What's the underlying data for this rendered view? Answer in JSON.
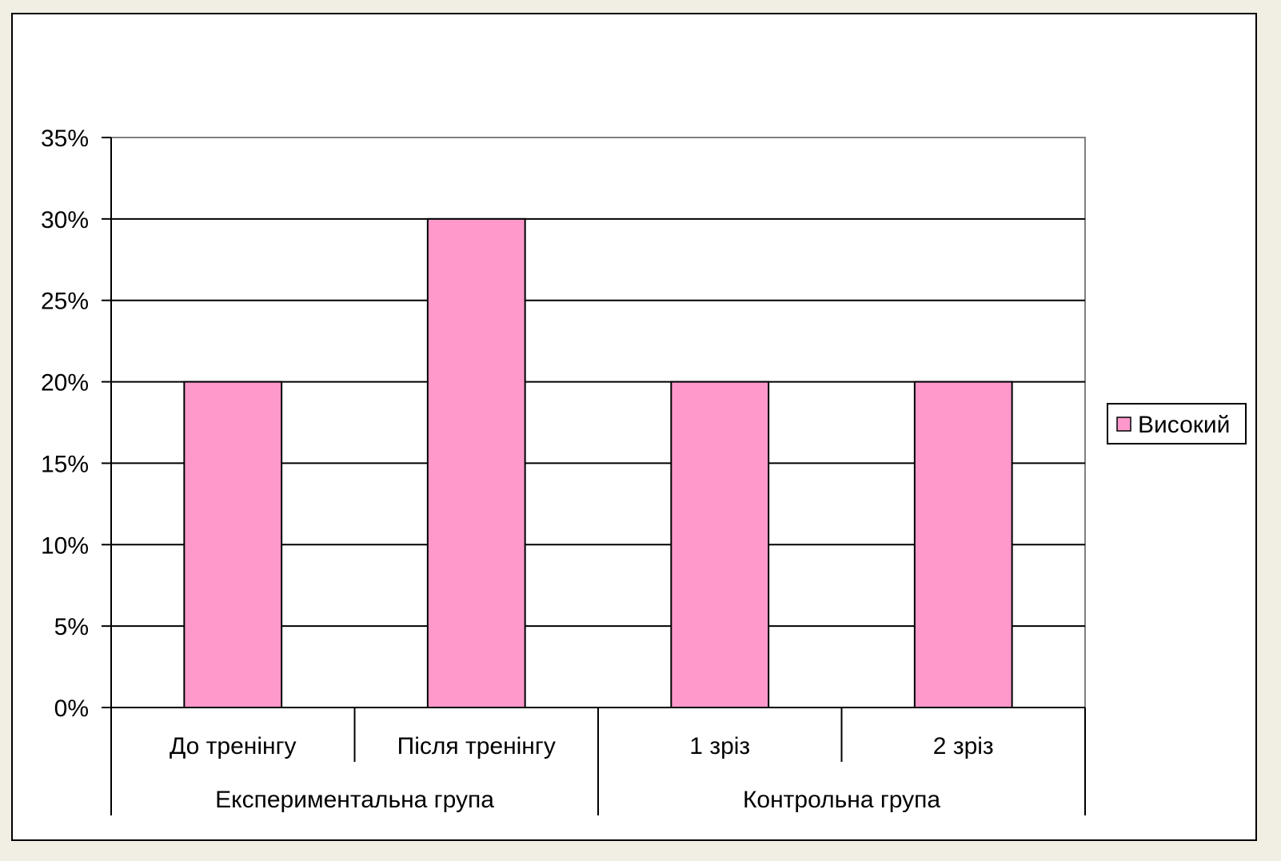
{
  "chart_data": {
    "type": "bar",
    "title": "",
    "xlabel": "",
    "ylabel": "",
    "categories": [
      "До тренінгу",
      "Після тренінгу",
      "1 зріз",
      "2 зріз"
    ],
    "groups": [
      {
        "label": "Експериментальна група",
        "categories": [
          "До тренінгу",
          "Після тренінгу"
        ]
      },
      {
        "label": "Контрольна група",
        "categories": [
          "1 зріз",
          "2 зріз"
        ]
      }
    ],
    "series": [
      {
        "name": "Високий",
        "values": [
          20,
          30,
          20,
          20
        ],
        "color": "#ff99cc"
      }
    ],
    "ylim": [
      0,
      35
    ],
    "yticks": [
      0,
      5,
      10,
      15,
      20,
      25,
      30,
      35
    ],
    "ytick_labels": [
      "0%",
      "5%",
      "10%",
      "15%",
      "20%",
      "25%",
      "30%",
      "35%"
    ],
    "grid": true,
    "legend_position": "right"
  }
}
